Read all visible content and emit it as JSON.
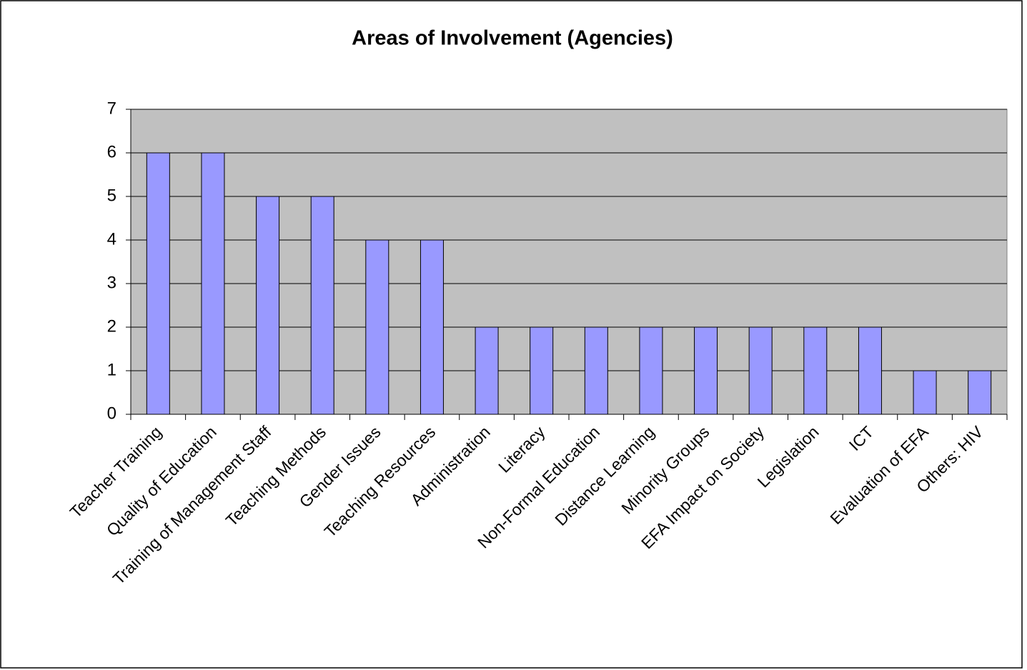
{
  "chart_data": {
    "type": "bar",
    "title": "Areas of Involvement (Agencies)",
    "categories": [
      "Teacher Training",
      "Quality of Education",
      "Training of Management Staff",
      "Teaching Methods",
      "Gender Issues",
      "Teaching Resources",
      "Administration",
      "Literacy",
      "Non-Formal Education",
      "Distance Learning",
      "Minority Groups",
      "EFA Impact on Society",
      "Legislation",
      "ICT",
      "Evaluation of EFA",
      "Others: HIV"
    ],
    "values": [
      6,
      6,
      5,
      5,
      4,
      4,
      2,
      2,
      2,
      2,
      2,
      2,
      2,
      2,
      1,
      1
    ],
    "color": "#9999ff",
    "ylim": [
      0,
      7
    ],
    "yticks": [
      0,
      1,
      2,
      3,
      4,
      5,
      6,
      7
    ],
    "grid": true
  }
}
